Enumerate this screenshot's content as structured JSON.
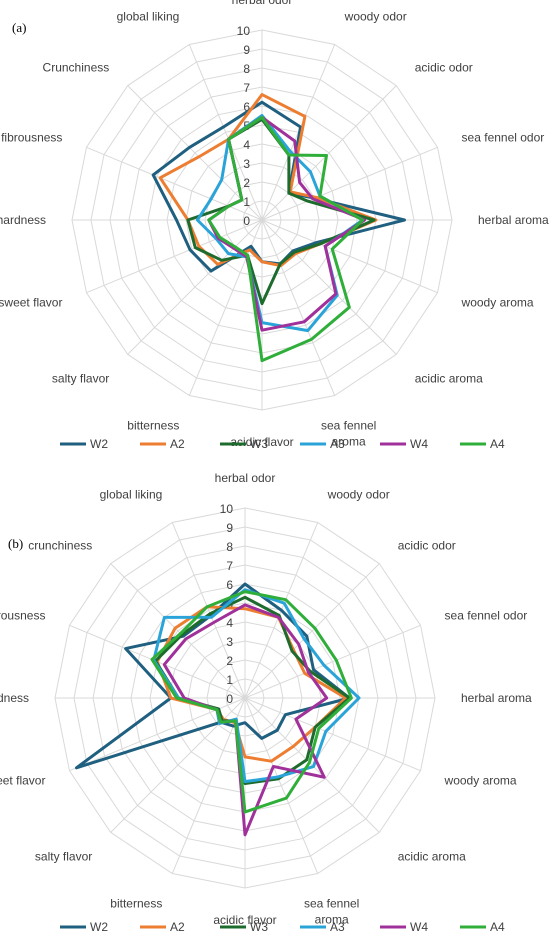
{
  "chart_data": [
    {
      "type": "radar",
      "panel_label": "(a)",
      "categories": [
        "herbal odor",
        "woody odor",
        "acidic odor",
        "sea fennel odor",
        "herbal aroma",
        "woody aroma",
        "acidic aroma",
        "sea fennel aroma",
        "acidic flavor",
        "bitterness",
        "salty flavor",
        "sweet flavor",
        "hardness",
        "fibrousness",
        "Crunchiness",
        "global liking"
      ],
      "ticks": [
        "0",
        "1",
        "2",
        "3",
        "4",
        "5",
        "6",
        "7",
        "8",
        "9",
        "10"
      ],
      "range": [
        0,
        10
      ],
      "series": [
        {
          "name": "W2",
          "color": "#1f5f7f",
          "values": [
            6.2,
            5.3,
            2.0,
            3.0,
            7.5,
            3.1,
            2.3,
            2.5,
            2.2,
            1.5,
            3.8,
            4.1,
            4.5,
            6.2,
            5.4,
            5.3
          ]
        },
        {
          "name": "A2",
          "color": "#ed7d31",
          "values": [
            6.6,
            5.9,
            2.1,
            3.1,
            6.0,
            3.3,
            2.5,
            2.6,
            2.2,
            1.7,
            3.3,
            3.6,
            3.9,
            5.8,
            4.7,
            4.6
          ]
        },
        {
          "name": "W3",
          "color": "#1e6b2e",
          "values": [
            5.3,
            3.7,
            2.0,
            2.6,
            5.9,
            3.3,
            2.4,
            2.5,
            4.4,
            2.0,
            3.0,
            3.8,
            3.9,
            1.9,
            1.5,
            4.6
          ]
        },
        {
          "name": "A3",
          "color": "#2aa4d8",
          "values": [
            5.5,
            3.9,
            3.6,
            3.3,
            5.3,
            3.6,
            5.6,
            6.3,
            5.4,
            2.1,
            2.5,
            2.6,
            3.4,
            2.9,
            3.0,
            4.6
          ]
        },
        {
          "name": "W4",
          "color": "#a0309a",
          "values": [
            5.4,
            4.5,
            2.8,
            2.9,
            5.4,
            3.6,
            5.5,
            5.8,
            5.8,
            2.1,
            2.1,
            2.5,
            2.8,
            1.9,
            1.5,
            4.6
          ]
        },
        {
          "name": "A4",
          "color": "#2fae3a",
          "values": [
            5.4,
            3.7,
            4.8,
            3.3,
            5.3,
            4.0,
            6.5,
            6.8,
            7.4,
            2.0,
            2.0,
            2.4,
            2.8,
            1.9,
            1.5,
            4.6
          ]
        }
      ]
    },
    {
      "type": "radar",
      "panel_label": "(b)",
      "categories": [
        "herbal odor",
        "woody odor",
        "acidic odor",
        "sea fennel odor",
        "herbal aroma",
        "woody aroma",
        "acidic aroma",
        "sea fennel aroma",
        "acidic flavor",
        "bitterness",
        "salty flavor",
        "sweet flavor",
        "hardness",
        "fibrousness",
        "crunchiness",
        "global liking"
      ],
      "ticks": [
        "0",
        "1",
        "2",
        "3",
        "4",
        "5",
        "6",
        "7",
        "8",
        "9",
        "10"
      ],
      "range": [
        0,
        10
      ],
      "series": [
        {
          "name": "W2",
          "color": "#1f5f7f",
          "values": [
            6.0,
            5.0,
            4.6,
            3.9,
            5.5,
            2.3,
            2.4,
            2.3,
            1.3,
            1.6,
            1.8,
            9.6,
            3.9,
            6.8,
            4.6,
            4.7
          ]
        },
        {
          "name": "A2",
          "color": "#ed7d31",
          "values": [
            4.7,
            4.6,
            3.6,
            3.4,
            5.3,
            4.0,
            3.6,
            3.6,
            3.1,
            1.4,
            1.6,
            1.6,
            3.9,
            5.0,
            5.2,
            5.2
          ]
        },
        {
          "name": "W3",
          "color": "#1e6b2e",
          "values": [
            5.3,
            4.7,
            3.5,
            3.7,
            5.5,
            4.0,
            4.6,
            4.6,
            4.5,
            1.3,
            1.7,
            1.5,
            3.5,
            5.1,
            4.7,
            4.8
          ]
        },
        {
          "name": "A3",
          "color": "#2aa4d8",
          "values": [
            5.7,
            5.4,
            4.4,
            4.5,
            6.0,
            4.6,
            5.1,
            4.5,
            4.4,
            1.2,
            1.9,
            1.6,
            3.5,
            5.2,
            6.0,
            4.6
          ]
        },
        {
          "name": "W4",
          "color": "#a0309a",
          "values": [
            4.9,
            4.6,
            4.0,
            3.6,
            4.3,
            2.9,
            5.9,
            3.9,
            7.2,
            1.3,
            1.8,
            1.6,
            3.2,
            4.6,
            4.4,
            4.3
          ]
        },
        {
          "name": "A4",
          "color": "#2fae3a",
          "values": [
            5.6,
            5.6,
            5.2,
            5.2,
            5.6,
            4.2,
            4.8,
            5.7,
            6.0,
            1.3,
            1.8,
            1.6,
            3.6,
            5.3,
            4.8,
            5.2
          ]
        }
      ]
    }
  ]
}
